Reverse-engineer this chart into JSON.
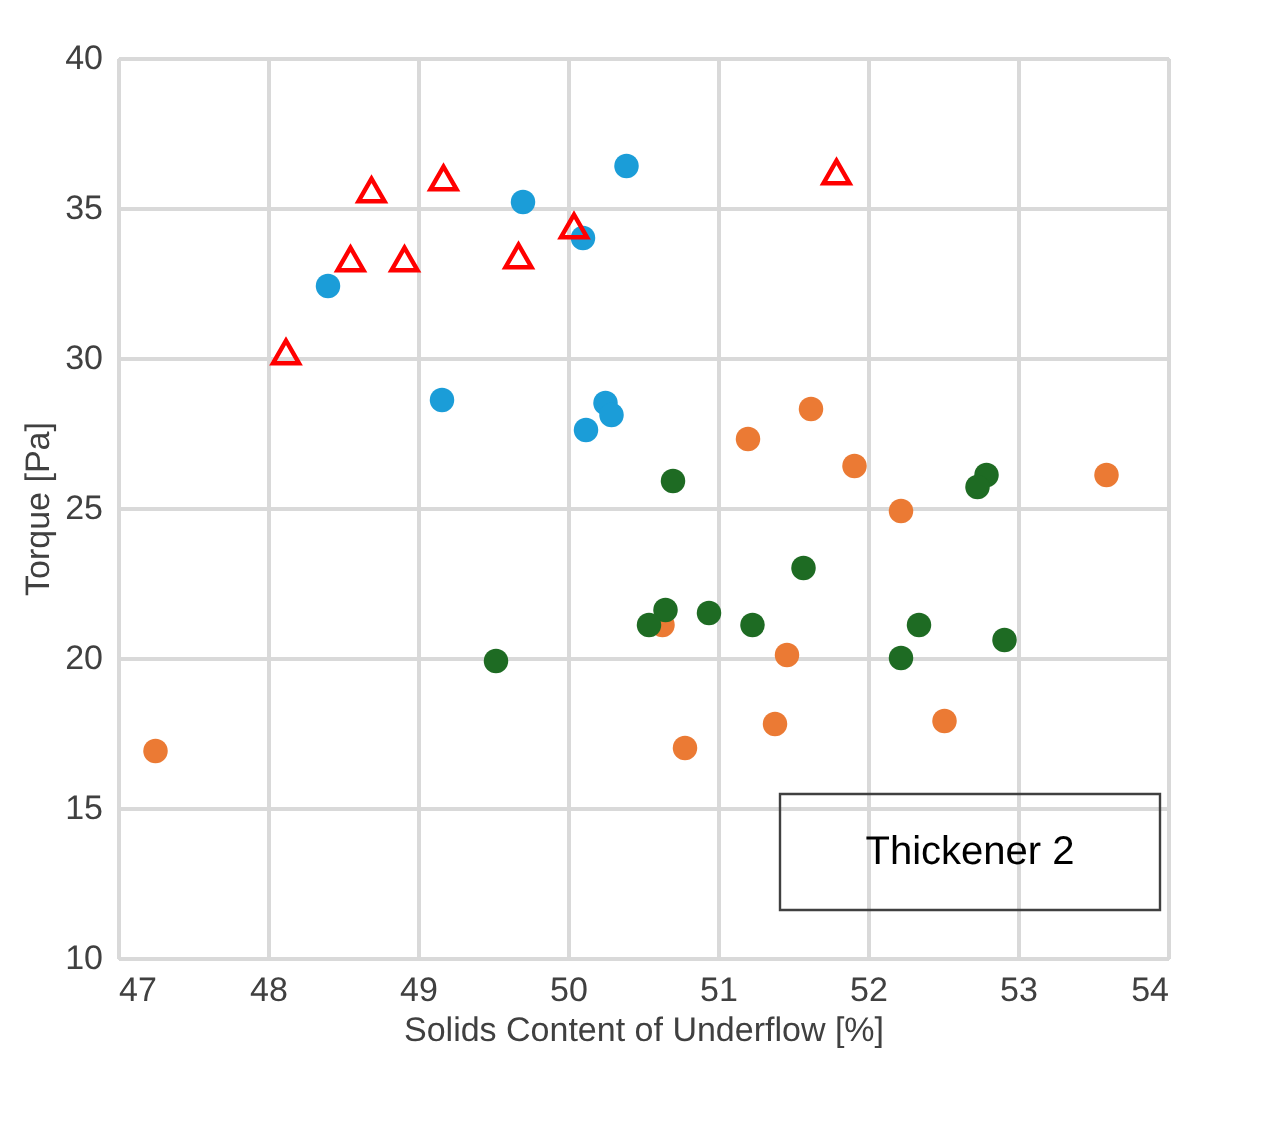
{
  "chart_data": {
    "type": "scatter",
    "xlabel": "Solids Content of Underflow [%]",
    "ylabel": "Torque [Pa]",
    "xlim": [
      47,
      54
    ],
    "xticks": [
      47,
      48,
      49,
      50,
      51,
      52,
      53,
      54
    ],
    "ylim": [
      10,
      40
    ],
    "yticks": [
      10,
      15,
      20,
      25,
      30,
      35,
      40
    ],
    "grid": true,
    "annotations": [
      "Thickener 2"
    ],
    "series": [
      {
        "color": "#1b9dd8",
        "marker": "circle",
        "x": [
          48.4,
          49.7,
          50.39,
          50.1,
          49.16,
          50.25,
          50.29,
          50.12
        ],
        "values": [
          32.4,
          35.2,
          36.4,
          34.0,
          28.6,
          28.5,
          28.1,
          27.6
        ]
      },
      {
        "color": "#ff0000",
        "marker": "triangle",
        "x": [
          48.12,
          48.55,
          48.69,
          48.91,
          49.17,
          49.67,
          50.04,
          51.79
        ],
        "values": [
          30.2,
          33.3,
          35.6,
          33.3,
          36.0,
          33.4,
          34.4,
          36.2
        ]
      },
      {
        "color": "#eb7a34",
        "marker": "circle",
        "x": [
          51.62,
          51.2,
          51.91,
          52.22,
          53.59,
          51.46,
          51.38,
          50.78,
          52.51,
          50.63,
          47.25
        ],
        "values": [
          28.3,
          27.3,
          26.4,
          24.9,
          26.1,
          20.1,
          17.8,
          17.0,
          17.9,
          21.1,
          16.9
        ]
      },
      {
        "color": "#1e6b23",
        "marker": "circle",
        "x": [
          50.7,
          51.57,
          50.94,
          50.65,
          50.54,
          51.23,
          52.34,
          52.22,
          52.91,
          52.79,
          52.73,
          49.52
        ],
        "values": [
          25.9,
          23.0,
          21.5,
          21.6,
          21.1,
          21.1,
          21.1,
          20.0,
          20.6,
          26.1,
          25.7,
          19.9
        ]
      }
    ]
  }
}
